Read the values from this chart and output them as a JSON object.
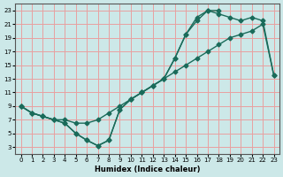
{
  "xlabel": "Humidex (Indice chaleur)",
  "bg_color": "#cce8e8",
  "grid_color": "#e8a0a0",
  "line_color": "#1a6b5a",
  "marker": "D",
  "markersize": 2.5,
  "linewidth": 1.0,
  "xlim": [
    -0.5,
    23.5
  ],
  "ylim": [
    2,
    24
  ],
  "xticks": [
    0,
    1,
    2,
    3,
    4,
    5,
    6,
    7,
    8,
    9,
    10,
    11,
    12,
    13,
    14,
    15,
    16,
    17,
    18,
    19,
    20,
    21,
    22,
    23
  ],
  "yticks": [
    3,
    5,
    7,
    9,
    11,
    13,
    15,
    17,
    19,
    21,
    23
  ],
  "line1_x": [
    0,
    1,
    2,
    3,
    4,
    5,
    6,
    7,
    8,
    9,
    10,
    11,
    12,
    13,
    14,
    15,
    16,
    17,
    18
  ],
  "line1_y": [
    9,
    8,
    7.5,
    7,
    6.5,
    5,
    4,
    3.2,
    4,
    8.5,
    10,
    11,
    12,
    13,
    16,
    19.5,
    22,
    23,
    23
  ],
  "line2_x": [
    0,
    1,
    2,
    3,
    4,
    5,
    6,
    7,
    8,
    9,
    10,
    11,
    12,
    13,
    14,
    15,
    16,
    17,
    18,
    19,
    20,
    21,
    22,
    23
  ],
  "line2_y": [
    9,
    8,
    7.5,
    7,
    7,
    6.5,
    6.5,
    7,
    8,
    9,
    10,
    11,
    12,
    13,
    14,
    15,
    16,
    17,
    18,
    19,
    19.5,
    20,
    21,
    13.5
  ],
  "line3_x": [
    0,
    1,
    2,
    3,
    4,
    5,
    6,
    7,
    8,
    9,
    10,
    11,
    12,
    13,
    14,
    15,
    16,
    17,
    18,
    19,
    20,
    21,
    22,
    23
  ],
  "line3_y": [
    9,
    8,
    7.5,
    7,
    6.5,
    5,
    4,
    3.2,
    4,
    8.5,
    10,
    11,
    12,
    13,
    16,
    19.5,
    21.5,
    23,
    22.5,
    22,
    21.5,
    22,
    21.5,
    13.5
  ]
}
